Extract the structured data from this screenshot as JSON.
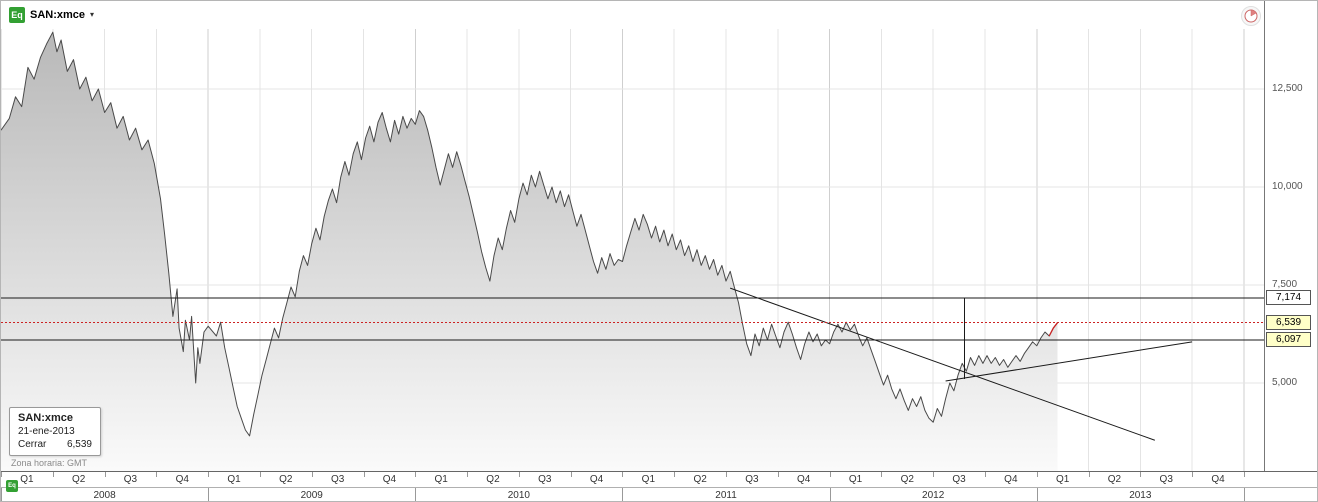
{
  "header": {
    "badge": "Eq",
    "symbol": "SAN:xmce",
    "caret": "▾"
  },
  "tooltip": {
    "symbol": "SAN:xmce",
    "date": "21-ene-2013",
    "close_label": "Cerrar",
    "close_value": "6,539"
  },
  "footer": {
    "timezone": "Zona horaria: GMT",
    "mini_badge": "Eq"
  },
  "x_axis": {
    "years": [
      {
        "label": "2008",
        "quarters": [
          "Q1",
          "Q2",
          "Q3",
          "Q4"
        ]
      },
      {
        "label": "2009",
        "quarters": [
          "Q1",
          "Q2",
          "Q3",
          "Q4"
        ]
      },
      {
        "label": "2010",
        "quarters": [
          "Q1",
          "Q2",
          "Q3",
          "Q4"
        ]
      },
      {
        "label": "2011",
        "quarters": [
          "Q1",
          "Q2",
          "Q3",
          "Q4"
        ]
      },
      {
        "label": "2012",
        "quarters": [
          "Q1",
          "Q2",
          "Q3",
          "Q4"
        ]
      },
      {
        "label": "2013",
        "quarters": [
          "Q1",
          "Q2",
          "Q3",
          "Q4"
        ]
      }
    ]
  },
  "colors": {
    "badge_green": "#33a033",
    "line": "#4a4a4a",
    "area_top": "#b8b8b8",
    "area_bottom": "#fafafa",
    "red": "#cc2222",
    "grid": "#e4e4e4",
    "grid_year": "#cfcfcf",
    "annotation": "#1a1a1a",
    "axis_text": "#555555",
    "marker_white": "#ffffff",
    "marker_yellow": "#ffffc8"
  },
  "chart_data": {
    "type": "area",
    "title": "SAN:xmce",
    "xlabel": "",
    "ylabel": "",
    "x_unit": "decimal-year",
    "x_range": [
      2008.0,
      2014.097
    ],
    "y_scale": [
      2755,
      14745
    ],
    "grid": true,
    "y_ticks": [
      {
        "label": "12,500",
        "value": 12500
      },
      {
        "label": "10,000",
        "value": 10000
      },
      {
        "label": "7,500",
        "value": 7500
      },
      {
        "label": "5,000",
        "value": 5000
      }
    ],
    "last_point": {
      "date": "21-ene-2013",
      "close_label": "Cerrar",
      "close": "6,539",
      "value": 6539
    },
    "red_segment_start": 2013.06,
    "annotations": {
      "horizontal_levels": [
        {
          "label": "7,174",
          "value": 7174,
          "box_bg": "#ffffff"
        },
        {
          "label": "6,097",
          "value": 6097,
          "box_bg": "#ffffc8"
        }
      ],
      "current_price": {
        "label": "6,539",
        "value": 6539,
        "style": "red-dashed",
        "box_bg": "#ffffc8"
      },
      "trendlines": [
        {
          "x1": 2011.52,
          "y1": 7420,
          "x2": 2013.57,
          "y2": 3540,
          "direction": "down"
        },
        {
          "x1": 2012.56,
          "y1": 5050,
          "x2": 2013.75,
          "y2": 6050,
          "direction": "up"
        }
      ],
      "vertical_line": {
        "x": 2012.65,
        "y1": 7174,
        "y2": 5100
      }
    },
    "points": [
      [
        2008.0,
        11450
      ],
      [
        2008.04,
        11750
      ],
      [
        2008.07,
        12300
      ],
      [
        2008.1,
        12050
      ],
      [
        2008.13,
        13050
      ],
      [
        2008.16,
        12750
      ],
      [
        2008.19,
        13300
      ],
      [
        2008.22,
        13650
      ],
      [
        2008.25,
        13950
      ],
      [
        2008.27,
        13450
      ],
      [
        2008.29,
        13750
      ],
      [
        2008.32,
        12950
      ],
      [
        2008.35,
        13250
      ],
      [
        2008.38,
        12500
      ],
      [
        2008.41,
        12800
      ],
      [
        2008.44,
        12200
      ],
      [
        2008.47,
        12500
      ],
      [
        2008.5,
        11900
      ],
      [
        2008.53,
        12150
      ],
      [
        2008.56,
        11500
      ],
      [
        2008.59,
        11800
      ],
      [
        2008.62,
        11200
      ],
      [
        2008.65,
        11500
      ],
      [
        2008.68,
        10950
      ],
      [
        2008.71,
        11200
      ],
      [
        2008.74,
        10600
      ],
      [
        2008.77,
        9700
      ],
      [
        2008.79,
        8800
      ],
      [
        2008.81,
        7800
      ],
      [
        2008.83,
        6700
      ],
      [
        2008.85,
        7400
      ],
      [
        2008.86,
        6400
      ],
      [
        2008.88,
        5800
      ],
      [
        2008.89,
        6600
      ],
      [
        2008.91,
        6100
      ],
      [
        2008.92,
        6700
      ],
      [
        2008.94,
        5000
      ],
      [
        2008.95,
        5900
      ],
      [
        2008.96,
        5500
      ],
      [
        2008.98,
        6300
      ],
      [
        2009.0,
        6450
      ],
      [
        2009.04,
        6200
      ],
      [
        2009.06,
        6550
      ],
      [
        2009.08,
        5900
      ],
      [
        2009.1,
        5400
      ],
      [
        2009.12,
        4900
      ],
      [
        2009.14,
        4400
      ],
      [
        2009.16,
        4100
      ],
      [
        2009.18,
        3800
      ],
      [
        2009.2,
        3650
      ],
      [
        2009.22,
        4200
      ],
      [
        2009.24,
        4700
      ],
      [
        2009.26,
        5200
      ],
      [
        2009.28,
        5600
      ],
      [
        2009.3,
        6000
      ],
      [
        2009.32,
        6400
      ],
      [
        2009.34,
        6150
      ],
      [
        2009.36,
        6650
      ],
      [
        2009.38,
        7050
      ],
      [
        2009.4,
        7450
      ],
      [
        2009.42,
        7200
      ],
      [
        2009.44,
        7850
      ],
      [
        2009.46,
        8250
      ],
      [
        2009.48,
        8000
      ],
      [
        2009.5,
        8550
      ],
      [
        2009.52,
        8950
      ],
      [
        2009.54,
        8650
      ],
      [
        2009.56,
        9250
      ],
      [
        2009.58,
        9650
      ],
      [
        2009.6,
        9950
      ],
      [
        2009.62,
        9600
      ],
      [
        2009.64,
        10250
      ],
      [
        2009.66,
        10650
      ],
      [
        2009.68,
        10300
      ],
      [
        2009.7,
        10850
      ],
      [
        2009.72,
        11150
      ],
      [
        2009.74,
        10700
      ],
      [
        2009.76,
        11250
      ],
      [
        2009.78,
        11550
      ],
      [
        2009.8,
        11150
      ],
      [
        2009.82,
        11650
      ],
      [
        2009.84,
        11900
      ],
      [
        2009.86,
        11500
      ],
      [
        2009.88,
        11150
      ],
      [
        2009.9,
        11700
      ],
      [
        2009.92,
        11350
      ],
      [
        2009.94,
        11800
      ],
      [
        2009.96,
        11500
      ],
      [
        2009.98,
        11750
      ],
      [
        2010.0,
        11600
      ],
      [
        2010.02,
        11950
      ],
      [
        2010.04,
        11800
      ],
      [
        2010.06,
        11450
      ],
      [
        2010.08,
        11000
      ],
      [
        2010.1,
        10500
      ],
      [
        2010.12,
        10050
      ],
      [
        2010.14,
        10450
      ],
      [
        2010.16,
        10850
      ],
      [
        2010.18,
        10500
      ],
      [
        2010.2,
        10900
      ],
      [
        2010.22,
        10550
      ],
      [
        2010.24,
        10150
      ],
      [
        2010.26,
        9750
      ],
      [
        2010.28,
        9300
      ],
      [
        2010.3,
        8850
      ],
      [
        2010.32,
        8350
      ],
      [
        2010.34,
        7950
      ],
      [
        2010.36,
        7600
      ],
      [
        2010.38,
        8250
      ],
      [
        2010.4,
        8700
      ],
      [
        2010.42,
        8400
      ],
      [
        2010.44,
        8950
      ],
      [
        2010.46,
        9400
      ],
      [
        2010.48,
        9100
      ],
      [
        2010.5,
        9700
      ],
      [
        2010.52,
        10100
      ],
      [
        2010.54,
        9800
      ],
      [
        2010.56,
        10300
      ],
      [
        2010.58,
        10000
      ],
      [
        2010.6,
        10400
      ],
      [
        2010.62,
        10050
      ],
      [
        2010.64,
        9700
      ],
      [
        2010.66,
        10000
      ],
      [
        2010.68,
        9600
      ],
      [
        2010.7,
        9900
      ],
      [
        2010.72,
        9500
      ],
      [
        2010.74,
        9800
      ],
      [
        2010.76,
        9400
      ],
      [
        2010.78,
        9000
      ],
      [
        2010.8,
        9300
      ],
      [
        2010.82,
        8900
      ],
      [
        2010.84,
        8500
      ],
      [
        2010.86,
        8100
      ],
      [
        2010.88,
        7800
      ],
      [
        2010.9,
        8200
      ],
      [
        2010.92,
        7900
      ],
      [
        2010.94,
        8300
      ],
      [
        2010.96,
        8000
      ],
      [
        2010.98,
        8150
      ],
      [
        2011.0,
        8100
      ],
      [
        2011.02,
        8500
      ],
      [
        2011.04,
        8850
      ],
      [
        2011.06,
        9200
      ],
      [
        2011.08,
        8900
      ],
      [
        2011.1,
        9300
      ],
      [
        2011.12,
        9050
      ],
      [
        2011.14,
        8700
      ],
      [
        2011.16,
        9000
      ],
      [
        2011.18,
        8600
      ],
      [
        2011.2,
        8900
      ],
      [
        2011.22,
        8500
      ],
      [
        2011.24,
        8800
      ],
      [
        2011.26,
        8400
      ],
      [
        2011.28,
        8650
      ],
      [
        2011.3,
        8250
      ],
      [
        2011.32,
        8500
      ],
      [
        2011.34,
        8100
      ],
      [
        2011.36,
        8400
      ],
      [
        2011.38,
        8000
      ],
      [
        2011.4,
        8250
      ],
      [
        2011.42,
        7900
      ],
      [
        2011.44,
        8150
      ],
      [
        2011.46,
        7750
      ],
      [
        2011.48,
        8000
      ],
      [
        2011.5,
        7600
      ],
      [
        2011.52,
        7850
      ],
      [
        2011.54,
        7450
      ],
      [
        2011.56,
        7050
      ],
      [
        2011.58,
        6500
      ],
      [
        2011.6,
        6000
      ],
      [
        2011.62,
        5700
      ],
      [
        2011.64,
        6250
      ],
      [
        2011.66,
        5950
      ],
      [
        2011.68,
        6400
      ],
      [
        2011.7,
        6100
      ],
      [
        2011.72,
        6500
      ],
      [
        2011.74,
        6200
      ],
      [
        2011.76,
        5900
      ],
      [
        2011.78,
        6300
      ],
      [
        2011.8,
        6550
      ],
      [
        2011.82,
        6250
      ],
      [
        2011.84,
        5900
      ],
      [
        2011.86,
        5600
      ],
      [
        2011.88,
        6000
      ],
      [
        2011.9,
        6300
      ],
      [
        2011.92,
        6050
      ],
      [
        2011.94,
        6250
      ],
      [
        2011.96,
        5950
      ],
      [
        2011.98,
        6100
      ],
      [
        2012.0,
        6000
      ],
      [
        2012.02,
        6300
      ],
      [
        2012.04,
        6500
      ],
      [
        2012.06,
        6300
      ],
      [
        2012.08,
        6550
      ],
      [
        2012.1,
        6350
      ],
      [
        2012.12,
        6500
      ],
      [
        2012.14,
        6200
      ],
      [
        2012.16,
        5950
      ],
      [
        2012.18,
        6150
      ],
      [
        2012.2,
        5850
      ],
      [
        2012.22,
        5550
      ],
      [
        2012.24,
        5250
      ],
      [
        2012.26,
        4950
      ],
      [
        2012.28,
        5200
      ],
      [
        2012.3,
        4850
      ],
      [
        2012.32,
        4600
      ],
      [
        2012.34,
        4850
      ],
      [
        2012.36,
        4550
      ],
      [
        2012.38,
        4300
      ],
      [
        2012.4,
        4600
      ],
      [
        2012.42,
        4400
      ],
      [
        2012.44,
        4650
      ],
      [
        2012.46,
        4300
      ],
      [
        2012.48,
        4100
      ],
      [
        2012.5,
        4000
      ],
      [
        2012.52,
        4350
      ],
      [
        2012.54,
        4150
      ],
      [
        2012.56,
        4600
      ],
      [
        2012.58,
        5000
      ],
      [
        2012.6,
        4800
      ],
      [
        2012.62,
        5200
      ],
      [
        2012.64,
        5500
      ],
      [
        2012.66,
        5300
      ],
      [
        2012.68,
        5650
      ],
      [
        2012.7,
        5450
      ],
      [
        2012.72,
        5700
      ],
      [
        2012.74,
        5500
      ],
      [
        2012.76,
        5700
      ],
      [
        2012.78,
        5500
      ],
      [
        2012.8,
        5650
      ],
      [
        2012.82,
        5450
      ],
      [
        2012.84,
        5600
      ],
      [
        2012.86,
        5400
      ],
      [
        2012.88,
        5550
      ],
      [
        2012.9,
        5700
      ],
      [
        2012.92,
        5550
      ],
      [
        2012.94,
        5750
      ],
      [
        2012.96,
        5900
      ],
      [
        2012.98,
        6050
      ],
      [
        2013.0,
        5950
      ],
      [
        2013.02,
        6150
      ],
      [
        2013.04,
        6300
      ],
      [
        2013.06,
        6200
      ],
      [
        2013.08,
        6400
      ],
      [
        2013.1,
        6539
      ]
    ]
  }
}
